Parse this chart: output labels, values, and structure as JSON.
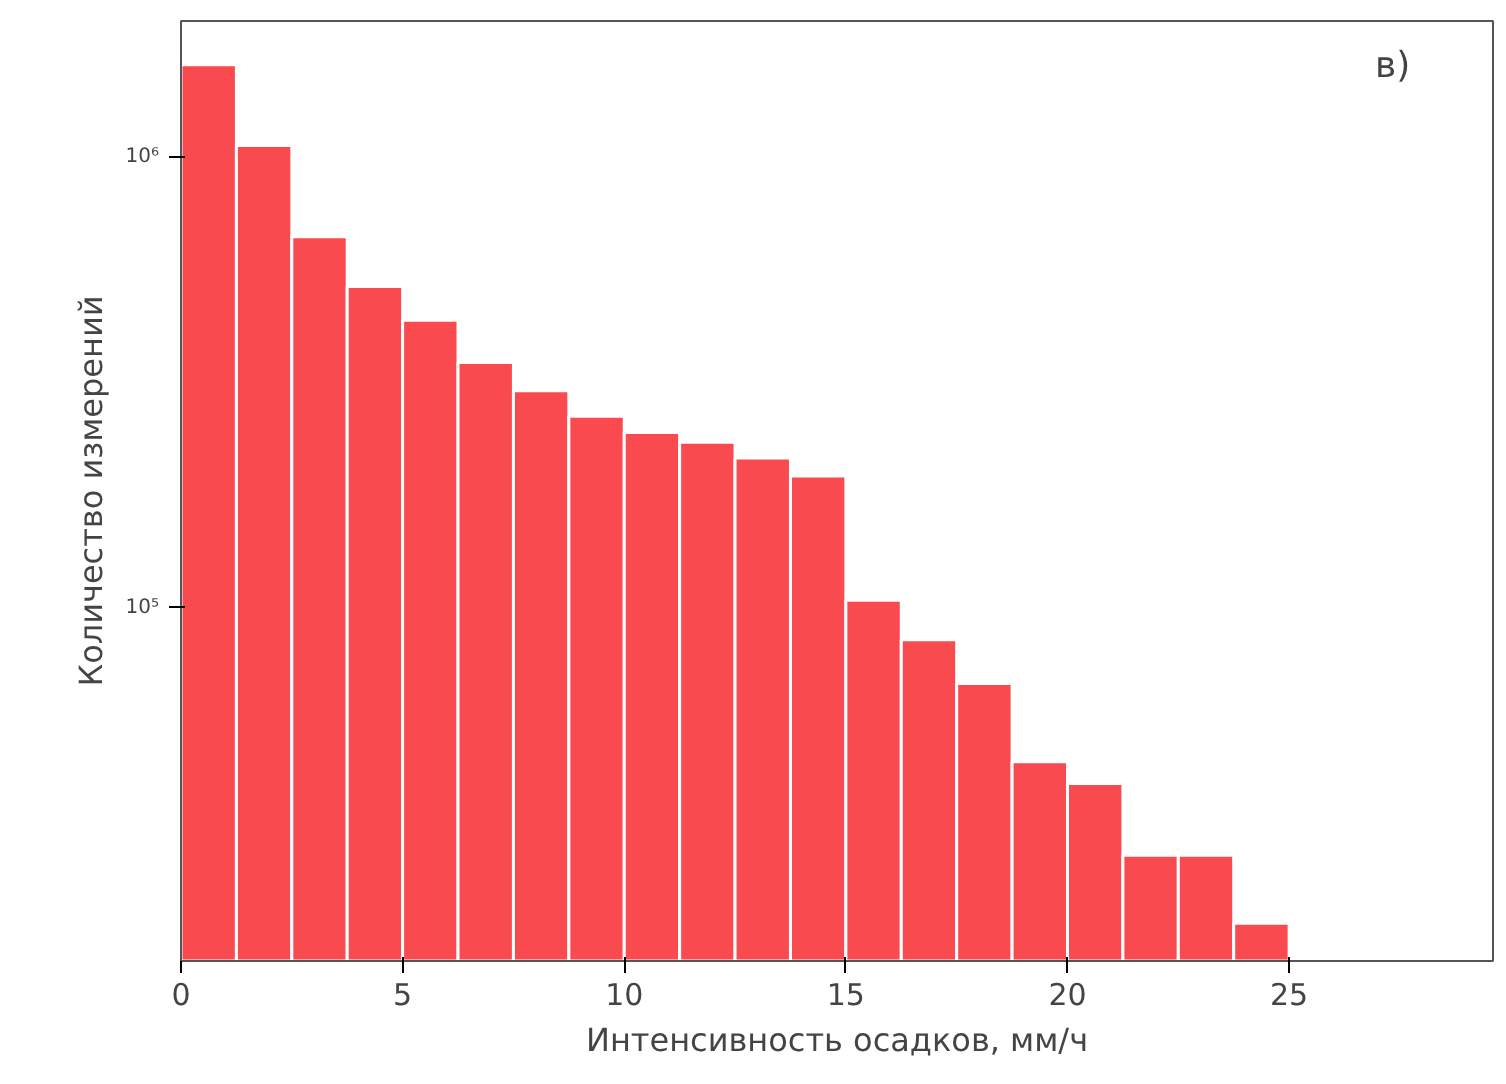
{
  "chart_data": {
    "type": "histogram",
    "xlabel": "Интенсивность осадков, мм/ч",
    "ylabel": "Количество измерений",
    "annotations": [
      "в)"
    ],
    "bins": [
      0,
      1.25,
      2.5,
      3.75,
      5,
      6.25,
      7.5,
      8.75,
      10,
      11.25,
      12.5,
      13.75,
      15,
      16.25,
      17.5,
      18.75,
      20,
      21.25,
      22.5,
      23.75,
      25
    ],
    "values": [
      1600000,
      1060000,
      665000,
      516000,
      434000,
      350000,
      303000,
      266000,
      245000,
      233000,
      215000,
      196000,
      104000,
      85000,
      68000,
      45600,
      40800,
      28300,
      28300,
      20000
    ],
    "color": "#f84a4f",
    "log": "y",
    "xlim": [
      0,
      29.6
    ],
    "ylim": [
      16500,
      2000000
    ],
    "xticks": [
      0,
      5,
      10,
      15,
      20,
      25
    ],
    "yticks": [
      {
        "value": 100000,
        "label": "10⁵"
      },
      {
        "value": 1000000,
        "label": "10⁶"
      }
    ],
    "grid": false
  }
}
